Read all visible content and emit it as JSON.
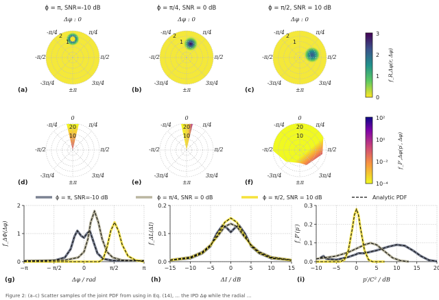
{
  "figure": {
    "caption": "Figure 2: (a–c) Scatter samples of the joint PDF from using in Eq. (14), ... the IPD Δφ while the radial ...",
    "panel_labels": [
      "(a)",
      "(b)",
      "(c)",
      "(d)",
      "(e)",
      "(f)",
      "(g)",
      "(h)",
      "(i)"
    ],
    "column_titles": [
      "ϕ = π, SNR=-10 dB",
      "ϕ = π/4, SNR = 0 dB",
      "ϕ = π/2, SNR = 10 dB"
    ],
    "row1_subtitle": "Δφ :  0",
    "angle_labels": {
      "top": "0",
      "tl": "-π/4",
      "tr": "π/4",
      "l": "-π/2",
      "r": "π/2",
      "bl": "-3π/4",
      "br": "3π/4",
      "bottom": "±π"
    },
    "row1_radial_labels": [
      "1",
      "2"
    ],
    "row2_radial_labels": [
      "10",
      "20"
    ],
    "colorbar1": {
      "label": "f_R,Δφ(r, Δφ)",
      "ticks": [
        "0",
        "1",
        "2",
        "3"
      ],
      "colormap": "viridis_r"
    },
    "colorbar2": {
      "label": "f_P′,Δφ(p′, Δφ)",
      "ticks": [
        "10⁻⁴",
        "10⁻²",
        "10⁰",
        "10²"
      ],
      "colormap": "plasma_r"
    },
    "colors": {
      "gray": "#5b6378",
      "tan": "#a9a58a",
      "yellow": "#f5e23a",
      "analytic": "#111111",
      "disk": "#f4e83a"
    }
  },
  "legend": [
    "ϕ = π, SNR=-10 dB",
    "ϕ = π/4, SNR = 0 dB",
    "ϕ = π/2, SNR = 10 dB",
    "Analytic PDF"
  ],
  "chart_data": [
    {
      "type": "line",
      "panel": "(g)",
      "xlabel": "Δφ / rad",
      "ylabel": "f_ΔΦ(Δφ)",
      "xlim": [
        -3.1416,
        3.1416
      ],
      "ylim": [
        0,
        2
      ],
      "xticks": [
        -3.1416,
        -1.5708,
        0,
        1.5708,
        3.1416
      ],
      "xtick_labels": [
        "−π",
        "− π/2",
        "0",
        "π/2",
        "π"
      ],
      "yticks": [
        0,
        1,
        2
      ],
      "ytick_labels": [
        "0",
        "1",
        "2"
      ],
      "grid": true,
      "series": [
        {
          "name": "ϕ = π, SNR=-10 dB",
          "color": "gray",
          "x": [
            -3.14,
            -2,
            -1.5,
            -1.0,
            -0.7,
            -0.5,
            -0.35,
            -0.15,
            0,
            0.15,
            0.3,
            0.5,
            0.7,
            1.0,
            1.5,
            2.2,
            3.14
          ],
          "y": [
            0.03,
            0.03,
            0.05,
            0.15,
            0.45,
            0.9,
            1.1,
            0.92,
            0.85,
            1.0,
            1.1,
            0.7,
            0.3,
            0.1,
            0.04,
            0.03,
            0.03
          ]
        },
        {
          "name": "ϕ = π/4, SNR = 0 dB",
          "color": "tan",
          "x": [
            -3.14,
            -1.0,
            -0.3,
            0,
            0.2,
            0.35,
            0.55,
            0.75,
            0.95,
            1.2,
            1.5,
            2.0,
            3.14
          ],
          "y": [
            0.03,
            0.05,
            0.15,
            0.35,
            0.8,
            1.4,
            1.8,
            1.4,
            0.8,
            0.35,
            0.15,
            0.05,
            0.03
          ]
        },
        {
          "name": "ϕ = π/2, SNR = 10 dB",
          "color": "yellow",
          "x": [
            -3.14,
            0.8,
            1.0,
            1.2,
            1.4,
            1.6,
            1.8,
            2.0,
            2.3,
            2.7,
            3.14
          ],
          "y": [
            0,
            0,
            0.1,
            0.5,
            1.1,
            1.4,
            1.1,
            0.6,
            0.2,
            0.05,
            0
          ]
        }
      ]
    },
    {
      "type": "line",
      "panel": "(h)",
      "xlabel": "ΔI / dB",
      "ylabel": "f_ΔL(ΔI)",
      "xlim": [
        -15,
        15
      ],
      "ylim": [
        0,
        0.2
      ],
      "xticks": [
        -15,
        -10,
        -5,
        0,
        5,
        10,
        15
      ],
      "xtick_labels": [
        "−15",
        "−10",
        "−5",
        "0",
        "5",
        "10",
        "15"
      ],
      "yticks": [
        0,
        0.1,
        0.2
      ],
      "ytick_labels": [
        "0.0",
        "0.1",
        "0.2"
      ],
      "grid": true,
      "series": [
        {
          "name": "ϕ = π, SNR=-10 dB",
          "color": "gray",
          "x": [
            -15,
            -10,
            -7,
            -5,
            -3.5,
            -2,
            -1,
            0,
            1,
            2,
            3.5,
            5,
            7,
            10,
            15
          ],
          "y": [
            0.005,
            0.012,
            0.03,
            0.055,
            0.1,
            0.13,
            0.12,
            0.105,
            0.12,
            0.13,
            0.1,
            0.055,
            0.03,
            0.012,
            0.005
          ]
        },
        {
          "name": "ϕ = π/4, SNR = 0 dB",
          "color": "tan",
          "x": [
            -15,
            -10,
            -7,
            -5,
            -3,
            -1.5,
            0,
            1.5,
            3,
            5,
            7,
            10,
            15
          ],
          "y": [
            0.006,
            0.016,
            0.035,
            0.06,
            0.095,
            0.125,
            0.135,
            0.125,
            0.095,
            0.06,
            0.035,
            0.016,
            0.006
          ]
        },
        {
          "name": "ϕ = π/2, SNR = 10 dB",
          "color": "yellow",
          "x": [
            -15,
            -10,
            -7,
            -5,
            -3,
            -1.5,
            0,
            1.5,
            3,
            5,
            7,
            10,
            15
          ],
          "y": [
            0.005,
            0.014,
            0.032,
            0.058,
            0.1,
            0.14,
            0.155,
            0.14,
            0.1,
            0.058,
            0.032,
            0.014,
            0.005
          ]
        }
      ]
    },
    {
      "type": "line",
      "panel": "(i)",
      "xlabel": "p′/C² / dB",
      "ylabel": "f_P′(p′)",
      "xlim": [
        -10,
        20
      ],
      "ylim": [
        0,
        0.3
      ],
      "xticks": [
        -10,
        -5,
        0,
        5,
        10,
        15,
        20
      ],
      "xtick_labels": [
        "−10",
        "−5",
        "0",
        "5",
        "10",
        "15",
        "20"
      ],
      "yticks": [
        0,
        0.1,
        0.2,
        0.3
      ],
      "ytick_labels": [
        "0.0",
        "0.1",
        "0.2",
        "0.3"
      ],
      "grid": true,
      "series": [
        {
          "name": "ϕ = π, SNR=-10 dB",
          "color": "gray",
          "x": [
            -9,
            -8.2,
            -7.5,
            -5,
            -2,
            0,
            0.5,
            2,
            5,
            8,
            10,
            12,
            14,
            16,
            18,
            20
          ],
          "y": [
            0.02,
            0.03,
            0.015,
            0.01,
            0.025,
            0.04,
            0.045,
            0.045,
            0.06,
            0.08,
            0.09,
            0.085,
            0.06,
            0.03,
            0.008,
            0.002
          ]
        },
        {
          "name": "ϕ = π/4, SNR = 0 dB",
          "color": "tan",
          "x": [
            -10,
            -8,
            -5,
            -2,
            0,
            2,
            3.5,
            5,
            7,
            9,
            11,
            13
          ],
          "y": [
            0.015,
            0.02,
            0.03,
            0.05,
            0.07,
            0.09,
            0.1,
            0.09,
            0.055,
            0.02,
            0.005,
            0
          ]
        },
        {
          "name": "ϕ = π/2, SNR = 10 dB",
          "color": "yellow",
          "x": [
            -10,
            -4,
            -3,
            -2,
            -1,
            -0.5,
            0,
            0.5,
            1,
            2,
            3,
            4,
            7
          ],
          "y": [
            0,
            0,
            0.01,
            0.06,
            0.18,
            0.25,
            0.28,
            0.25,
            0.18,
            0.06,
            0.01,
            0,
            0
          ]
        }
      ]
    }
  ]
}
